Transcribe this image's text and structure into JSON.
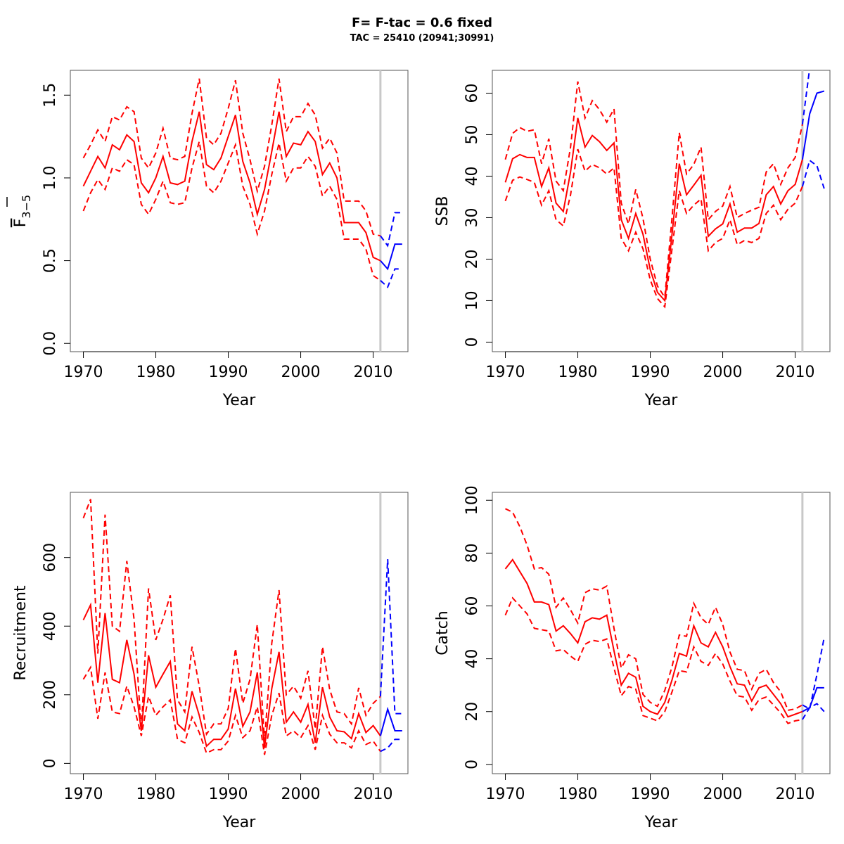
{
  "header": {
    "title": "F= F-tac = 0.6 fixed",
    "subtitle": "TAC = 25410 (20941;30991)"
  },
  "colors": {
    "historical": "#ff0000",
    "projection": "#0000ff",
    "reference_line": "#c8c8c8",
    "frame": "#000000"
  },
  "chart_data": [
    {
      "id": "fbar",
      "type": "line",
      "title": "",
      "xlabel": "Year",
      "ylabel": "F̅ 3–5",
      "ylabel_main": "F",
      "ylabel_sub": "3−5",
      "xlim": [
        1968.2,
        2014.8
      ],
      "ylim": [
        -0.05,
        1.65
      ],
      "xticks": [
        1970,
        1980,
        1990,
        2000,
        2010
      ],
      "yticks": [
        0.0,
        0.5,
        1.0,
        1.5
      ],
      "ytick_labels": [
        "0.0",
        "0.5",
        "1.0",
        "1.5"
      ],
      "vline": 2011,
      "historical": {
        "x": [
          1970,
          1971,
          1972,
          1973,
          1974,
          1975,
          1976,
          1977,
          1978,
          1979,
          1980,
          1981,
          1982,
          1983,
          1984,
          1985,
          1986,
          1987,
          1988,
          1989,
          1990,
          1991,
          1992,
          1993,
          1994,
          1995,
          1996,
          1997,
          1998,
          1999,
          2000,
          2001,
          2002,
          2003,
          2004,
          2005,
          2006,
          2007,
          2008,
          2009,
          2010,
          2011
        ],
        "estimate": [
          0.95,
          1.04,
          1.13,
          1.06,
          1.2,
          1.17,
          1.26,
          1.22,
          0.97,
          0.91,
          1.0,
          1.13,
          0.97,
          0.96,
          0.98,
          1.22,
          1.4,
          1.08,
          1.05,
          1.12,
          1.25,
          1.38,
          1.1,
          0.97,
          0.78,
          0.93,
          1.16,
          1.4,
          1.13,
          1.21,
          1.2,
          1.28,
          1.22,
          1.02,
          1.09,
          1.0,
          0.73,
          0.73,
          0.73,
          0.67,
          0.52,
          0.5
        ],
        "upper": [
          1.12,
          1.2,
          1.29,
          1.22,
          1.37,
          1.35,
          1.43,
          1.4,
          1.12,
          1.06,
          1.15,
          1.3,
          1.12,
          1.11,
          1.13,
          1.39,
          1.6,
          1.24,
          1.2,
          1.27,
          1.42,
          1.59,
          1.27,
          1.11,
          0.92,
          1.07,
          1.32,
          1.6,
          1.28,
          1.37,
          1.37,
          1.45,
          1.38,
          1.18,
          1.24,
          1.15,
          0.86,
          0.86,
          0.86,
          0.8,
          0.66,
          0.65
        ],
        "lower": [
          0.8,
          0.91,
          0.99,
          0.93,
          1.06,
          1.04,
          1.11,
          1.08,
          0.84,
          0.78,
          0.87,
          0.98,
          0.85,
          0.84,
          0.85,
          1.06,
          1.22,
          0.95,
          0.91,
          0.98,
          1.09,
          1.2,
          0.95,
          0.84,
          0.66,
          0.8,
          1.02,
          1.21,
          0.98,
          1.06,
          1.06,
          1.13,
          1.07,
          0.89,
          0.95,
          0.87,
          0.63,
          0.63,
          0.63,
          0.57,
          0.41,
          0.38
        ]
      },
      "projection": {
        "x": [
          2011,
          2012,
          2013,
          2014
        ],
        "estimate": [
          0.5,
          0.45,
          0.6,
          0.6
        ],
        "upper": [
          0.65,
          0.59,
          0.79,
          0.79
        ],
        "lower": [
          0.38,
          0.34,
          0.45,
          0.45
        ]
      }
    },
    {
      "id": "ssb",
      "type": "line",
      "title": "",
      "xlabel": "Year",
      "ylabel": "SSB",
      "xlim": [
        1968.2,
        2014.8
      ],
      "ylim": [
        -2.3,
        65.5
      ],
      "xticks": [
        1970,
        1980,
        1990,
        2000,
        2010
      ],
      "yticks": [
        0,
        10,
        20,
        30,
        40,
        50,
        60
      ],
      "ytick_labels": [
        "0",
        "10",
        "20",
        "30",
        "40",
        "50",
        "60"
      ],
      "vline": 2011,
      "historical": {
        "x": [
          1970,
          1971,
          1972,
          1973,
          1974,
          1975,
          1976,
          1977,
          1978,
          1979,
          1980,
          1981,
          1982,
          1983,
          1984,
          1985,
          1986,
          1987,
          1988,
          1989,
          1990,
          1991,
          1992,
          1993,
          1994,
          1995,
          1996,
          1997,
          1998,
          1999,
          2000,
          2001,
          2002,
          2003,
          2004,
          2005,
          2006,
          2007,
          2008,
          2009,
          2010,
          2011
        ],
        "estimate": [
          38.5,
          44.2,
          45.2,
          44.5,
          44.5,
          37.5,
          42.0,
          33.5,
          31.5,
          41.0,
          54.0,
          47.0,
          49.8,
          48.3,
          46.2,
          48.0,
          29.5,
          25.0,
          31.0,
          26.0,
          17.5,
          12.0,
          10.0,
          26.0,
          43.0,
          35.5,
          37.8,
          40.2,
          25.5,
          27.3,
          28.5,
          33.3,
          26.5,
          27.5,
          27.5,
          28.6,
          35.5,
          37.5,
          33.3,
          36.5,
          38.0,
          44.0
        ],
        "upper": [
          44.0,
          50.3,
          51.7,
          50.8,
          51.2,
          43.0,
          49.0,
          38.8,
          36.5,
          47.0,
          62.8,
          54.0,
          58.2,
          56.0,
          53.0,
          56.2,
          33.5,
          28.5,
          36.8,
          29.8,
          20.0,
          13.5,
          10.8,
          30.0,
          50.5,
          40.5,
          42.8,
          47.0,
          29.5,
          31.5,
          32.8,
          37.5,
          30.0,
          31.0,
          31.8,
          32.5,
          41.0,
          43.0,
          38.0,
          42.0,
          44.5,
          52.5
        ],
        "lower": [
          34.0,
          39.0,
          39.8,
          39.2,
          38.5,
          33.0,
          36.5,
          29.5,
          28.0,
          35.5,
          46.5,
          41.2,
          42.8,
          42.0,
          40.5,
          42.0,
          25.0,
          22.0,
          26.5,
          22.5,
          15.0,
          10.5,
          8.5,
          22.5,
          36.5,
          31.0,
          33.0,
          34.5,
          22.0,
          24.0,
          25.0,
          29.5,
          23.5,
          24.5,
          24.0,
          25.0,
          31.0,
          33.0,
          29.5,
          32.0,
          33.5,
          37.5
        ]
      },
      "projection": {
        "x": [
          2011,
          2012,
          2013,
          2014
        ],
        "estimate": [
          44.0,
          55.0,
          60.0,
          60.5
        ],
        "upper": [
          52.5,
          66.0,
          66.0,
          66.0
        ],
        "lower": [
          37.5,
          43.8,
          42.5,
          37.0
        ]
      }
    },
    {
      "id": "recruitment",
      "type": "line",
      "title": "",
      "xlabel": "Year",
      "ylabel": "Recruitment",
      "xlim": [
        1968.2,
        2014.8
      ],
      "ylim": [
        -30,
        790
      ],
      "xticks": [
        1970,
        1980,
        1990,
        2000,
        2010
      ],
      "yticks": [
        0,
        200,
        400,
        600
      ],
      "ytick_labels": [
        "0",
        "200",
        "400",
        "600"
      ],
      "vline": 2011,
      "historical": {
        "x": [
          1970,
          1971,
          1972,
          1973,
          1974,
          1975,
          1976,
          1977,
          1978,
          1979,
          1980,
          1981,
          1982,
          1983,
          1984,
          1985,
          1986,
          1987,
          1988,
          1989,
          1990,
          1991,
          1992,
          1993,
          1994,
          1995,
          1996,
          1997,
          1998,
          1999,
          2000,
          2001,
          2002,
          2003,
          2004,
          2005,
          2006,
          2007,
          2008,
          2009,
          2010,
          2011
        ],
        "estimate": [
          418,
          462,
          235,
          438,
          245,
          235,
          360,
          260,
          95,
          315,
          222,
          260,
          297,
          115,
          95,
          210,
          140,
          50,
          70,
          70,
          100,
          218,
          108,
          150,
          265,
          45,
          218,
          325,
          120,
          150,
          120,
          172,
          60,
          222,
          135,
          95,
          92,
          72,
          145,
          90,
          110,
          80
        ],
        "upper": [
          715,
          770,
          320,
          725,
          400,
          385,
          590,
          420,
          95,
          510,
          360,
          420,
          490,
          185,
          150,
          340,
          225,
          85,
          115,
          115,
          160,
          335,
          175,
          245,
          405,
          65,
          350,
          505,
          200,
          225,
          190,
          270,
          100,
          340,
          215,
          150,
          145,
          115,
          220,
          140,
          175,
          195
        ],
        "lower": [
          245,
          280,
          130,
          265,
          150,
          145,
          225,
          165,
          80,
          195,
          140,
          165,
          185,
          70,
          60,
          135,
          90,
          30,
          40,
          40,
          65,
          140,
          75,
          95,
          165,
          25,
          140,
          205,
          80,
          95,
          75,
          110,
          40,
          140,
          85,
          60,
          60,
          45,
          95,
          55,
          65,
          35
        ]
      },
      "projection": {
        "x": [
          2011,
          2012,
          2013,
          2014
        ],
        "estimate": [
          80,
          158,
          95,
          95
        ],
        "upper": [
          195,
          595,
          145,
          145
        ],
        "lower": [
          35,
          45,
          70,
          70
        ]
      }
    },
    {
      "id": "catch",
      "type": "line",
      "title": "",
      "xlabel": "Year",
      "ylabel": "Catch",
      "xlim": [
        1968.2,
        2014.8
      ],
      "ylim": [
        -3.5,
        103
      ],
      "xticks": [
        1970,
        1980,
        1990,
        2000,
        2010
      ],
      "yticks": [
        0,
        20,
        40,
        60,
        80,
        100
      ],
      "ytick_labels": [
        "0",
        "20",
        "40",
        "60",
        "80",
        "100"
      ],
      "vline": 2011,
      "historical": {
        "x": [
          1970,
          1971,
          1972,
          1973,
          1974,
          1975,
          1976,
          1977,
          1978,
          1979,
          1980,
          1981,
          1982,
          1983,
          1984,
          1985,
          1986,
          1987,
          1988,
          1989,
          1990,
          1991,
          1992,
          1993,
          1994,
          1995,
          1996,
          1997,
          1998,
          1999,
          2000,
          2001,
          2002,
          2003,
          2004,
          2005,
          2006,
          2007,
          2008,
          2009,
          2010,
          2011
        ],
        "estimate": [
          74.0,
          77.5,
          73.0,
          68.5,
          61.5,
          61.5,
          60.5,
          50.5,
          52.5,
          49.5,
          46.0,
          54.0,
          55.5,
          55.0,
          56.5,
          43.0,
          30.0,
          34.5,
          33.0,
          22.0,
          20.0,
          19.0,
          23.5,
          32.0,
          42.0,
          41.0,
          52.5,
          46.0,
          44.5,
          50.0,
          44.5,
          37.0,
          30.5,
          30.0,
          24.0,
          29.0,
          30.0,
          26.5,
          23.0,
          18.0,
          19.0,
          20.0
        ],
        "upper": [
          96.8,
          95.5,
          90.0,
          83.0,
          74.0,
          74.5,
          72.0,
          59.5,
          63.0,
          58.5,
          53.5,
          65.0,
          66.5,
          66.0,
          67.5,
          51.5,
          36.5,
          41.5,
          40.0,
          26.5,
          23.5,
          22.0,
          28.0,
          37.0,
          49.0,
          48.5,
          61.0,
          55.5,
          53.0,
          59.5,
          53.0,
          42.5,
          36.0,
          35.5,
          28.5,
          34.5,
          36.0,
          31.0,
          27.5,
          20.5,
          21.0,
          22.5
        ],
        "lower": [
          56.5,
          63.0,
          60.0,
          57.0,
          51.5,
          51.0,
          50.5,
          43.0,
          43.5,
          41.0,
          39.0,
          45.5,
          47.0,
          46.5,
          47.5,
          36.5,
          26.0,
          29.5,
          28.5,
          18.5,
          17.5,
          16.5,
          20.0,
          27.5,
          35.5,
          35.0,
          44.5,
          39.0,
          37.5,
          42.0,
          38.0,
          31.5,
          26.0,
          25.5,
          20.5,
          24.5,
          25.5,
          22.5,
          19.5,
          15.5,
          16.5,
          17.0
        ]
      },
      "projection": {
        "x": [
          2011,
          2012,
          2013,
          2014
        ],
        "estimate": [
          20.0,
          21.5,
          29.0,
          29.0
        ],
        "upper": [
          22.5,
          21.0,
          34.0,
          48.0
        ],
        "lower": [
          17.0,
          21.5,
          23.0,
          20.0
        ]
      }
    }
  ]
}
